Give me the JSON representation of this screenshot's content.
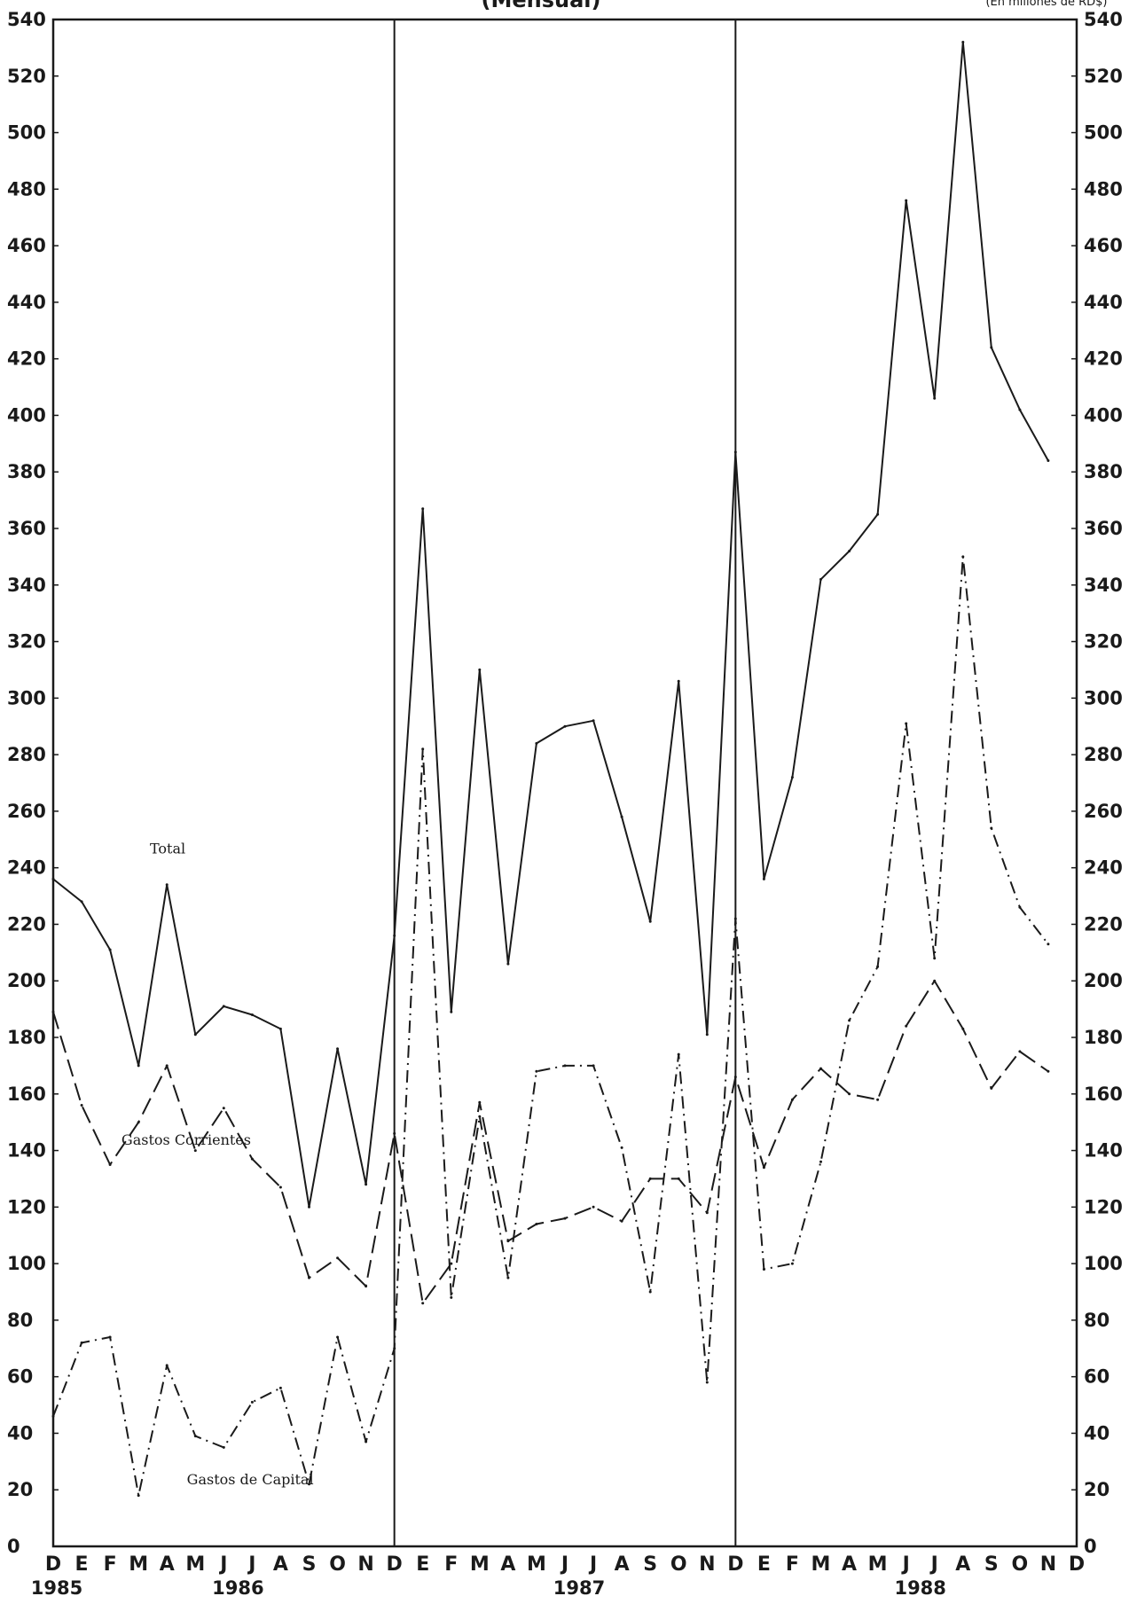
{
  "chart_data": {
    "type": "line",
    "title": "(Mensual)",
    "units": "(En millones de RD$)",
    "ylim": [
      0,
      540
    ],
    "y_ticks": [
      0,
      20,
      40,
      60,
      80,
      100,
      120,
      140,
      160,
      180,
      200,
      220,
      240,
      260,
      280,
      300,
      320,
      340,
      360,
      380,
      400,
      420,
      440,
      460,
      480,
      500,
      520,
      540
    ],
    "x": [
      "D",
      "E",
      "F",
      "M",
      "A",
      "M",
      "J",
      "J",
      "A",
      "S",
      "O",
      "N",
      "D",
      "E",
      "F",
      "M",
      "A",
      "M",
      "J",
      "J",
      "A",
      "S",
      "O",
      "N",
      "D",
      "E",
      "F",
      "M",
      "A",
      "M",
      "J",
      "J",
      "A",
      "S",
      "O",
      "N",
      "D"
    ],
    "years": [
      {
        "label": "1985",
        "at": 0
      },
      {
        "label": "1986",
        "at": 6.5
      },
      {
        "label": "1987",
        "at": 18.5
      },
      {
        "label": "1988",
        "at": 30.5
      }
    ],
    "dividers_at": [
      12,
      24
    ],
    "series": [
      {
        "name": "Total",
        "style": "solid",
        "points": [
          [
            0,
            236
          ],
          [
            1,
            228
          ],
          [
            2,
            211
          ],
          [
            3,
            170
          ],
          [
            4,
            234
          ],
          [
            5,
            181
          ],
          [
            6,
            191
          ],
          [
            7,
            188
          ],
          [
            8,
            183
          ],
          [
            9,
            120
          ],
          [
            10,
            176
          ],
          [
            11,
            128
          ],
          [
            12,
            216
          ],
          [
            13,
            367
          ],
          [
            14,
            189
          ],
          [
            15,
            310
          ],
          [
            16,
            206
          ],
          [
            17,
            284
          ],
          [
            18,
            290
          ],
          [
            19,
            292
          ],
          [
            20,
            258
          ],
          [
            21,
            221
          ],
          [
            22,
            306
          ],
          [
            23,
            181
          ],
          [
            24,
            387
          ],
          [
            25,
            236
          ],
          [
            26,
            272
          ],
          [
            27,
            342
          ],
          [
            28,
            352
          ],
          [
            29,
            365
          ],
          [
            30,
            476
          ],
          [
            31,
            406
          ],
          [
            32,
            532
          ],
          [
            33,
            424
          ],
          [
            34,
            402
          ],
          [
            35,
            384
          ]
        ]
      },
      {
        "name": "Gastos Corrientes",
        "style": "dashed",
        "points": [
          [
            0,
            189
          ],
          [
            1,
            156
          ],
          [
            2,
            135
          ],
          [
            3,
            150
          ],
          [
            4,
            170
          ],
          [
            5,
            140
          ],
          [
            6,
            155
          ],
          [
            7,
            137
          ],
          [
            8,
            127
          ],
          [
            9,
            95
          ],
          [
            10,
            102
          ],
          [
            11,
            92
          ],
          [
            12,
            146
          ],
          [
            13,
            86
          ],
          [
            14,
            100
          ],
          [
            15,
            157
          ],
          [
            16,
            108
          ],
          [
            17,
            114
          ],
          [
            18,
            116
          ],
          [
            19,
            120
          ],
          [
            20,
            115
          ],
          [
            21,
            130
          ],
          [
            22,
            130
          ],
          [
            23,
            118
          ],
          [
            24,
            166
          ],
          [
            25,
            134
          ],
          [
            26,
            158
          ],
          [
            27,
            169
          ],
          [
            28,
            160
          ],
          [
            29,
            158
          ],
          [
            30,
            184
          ],
          [
            31,
            200
          ],
          [
            32,
            183
          ],
          [
            33,
            162
          ],
          [
            34,
            175
          ],
          [
            35,
            168
          ]
        ]
      },
      {
        "name": "Gastos de Capital",
        "style": "dashdot",
        "points": [
          [
            0,
            46
          ],
          [
            1,
            72
          ],
          [
            2,
            74
          ],
          [
            3,
            18
          ],
          [
            4,
            64
          ],
          [
            5,
            39
          ],
          [
            6,
            35
          ],
          [
            7,
            51
          ],
          [
            8,
            56
          ],
          [
            9,
            22
          ],
          [
            10,
            74
          ],
          [
            11,
            37
          ],
          [
            12,
            70
          ],
          [
            13,
            282
          ],
          [
            14,
            88
          ],
          [
            15,
            152
          ],
          [
            16,
            95
          ],
          [
            17,
            168
          ],
          [
            18,
            170
          ],
          [
            19,
            170
          ],
          [
            20,
            141
          ],
          [
            21,
            90
          ],
          [
            22,
            174
          ],
          [
            23,
            58
          ],
          [
            24,
            222
          ],
          [
            25,
            98
          ],
          [
            26,
            100
          ],
          [
            27,
            136
          ],
          [
            28,
            186
          ],
          [
            29,
            205
          ],
          [
            30,
            291
          ],
          [
            31,
            208
          ],
          [
            32,
            350
          ],
          [
            33,
            254
          ],
          [
            34,
            226
          ],
          [
            35,
            213
          ]
        ]
      }
    ],
    "grid": false,
    "legend": "inline labels"
  }
}
